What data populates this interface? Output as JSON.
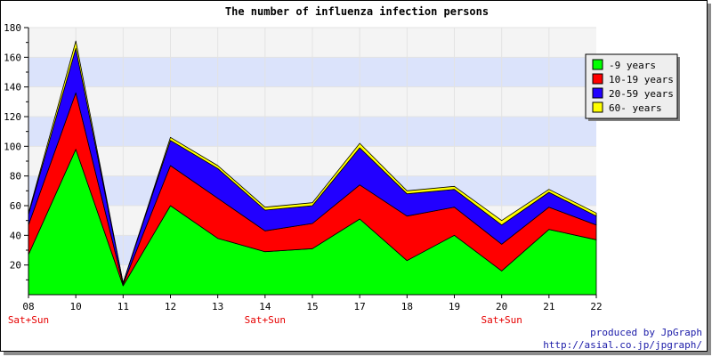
{
  "chart_data": {
    "type": "area",
    "stacked": true,
    "title": "The number of influenza infection persons",
    "xlabel": "",
    "ylabel": "",
    "categories": [
      "08",
      "10",
      "11",
      "12",
      "13",
      "14",
      "15",
      "17",
      "18",
      "19",
      "20",
      "21",
      "22"
    ],
    "weekend_label": "Sat+Sun",
    "weekend_categories": [
      "08",
      "14",
      "20"
    ],
    "ylim": [
      0,
      180
    ],
    "yticks": [
      20,
      40,
      60,
      80,
      100,
      120,
      140,
      160,
      180
    ],
    "grid": true,
    "legend_position": "top-right",
    "series": [
      {
        "name": "-9 years",
        "color": "#00ff00",
        "values": [
          27,
          98,
          6,
          60,
          38,
          29,
          31,
          51,
          23,
          40,
          16,
          44,
          37
        ]
      },
      {
        "name": "10-19 years",
        "color": "#ff0000",
        "values": [
          20,
          38,
          1,
          27,
          27,
          14,
          17,
          23,
          30,
          19,
          18,
          15,
          10
        ]
      },
      {
        "name": "20-59 years",
        "color": "#2200ff",
        "values": [
          7,
          30,
          1,
          17,
          20,
          14,
          12,
          25,
          15,
          12,
          13,
          10,
          6
        ]
      },
      {
        "name": "60- years",
        "color": "#ffff00",
        "values": [
          1,
          5,
          0,
          2,
          2,
          2,
          2,
          3,
          2,
          2,
          3,
          2,
          2
        ]
      }
    ]
  },
  "credit": {
    "line1": "produced by JpGraph",
    "line2": "http://asial.co.jp/jpgraph/"
  }
}
